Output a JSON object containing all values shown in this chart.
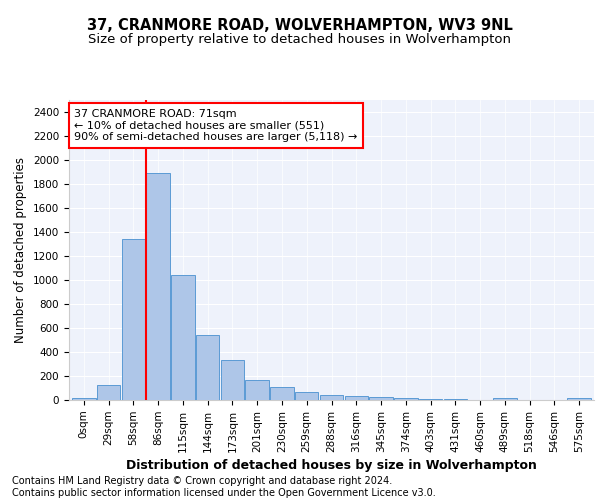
{
  "title": "37, CRANMORE ROAD, WOLVERHAMPTON, WV3 9NL",
  "subtitle": "Size of property relative to detached houses in Wolverhampton",
  "xlabel": "Distribution of detached houses by size in Wolverhampton",
  "ylabel": "Number of detached properties",
  "categories": [
    "0sqm",
    "29sqm",
    "58sqm",
    "86sqm",
    "115sqm",
    "144sqm",
    "173sqm",
    "201sqm",
    "230sqm",
    "259sqm",
    "288sqm",
    "316sqm",
    "345sqm",
    "374sqm",
    "403sqm",
    "431sqm",
    "460sqm",
    "489sqm",
    "518sqm",
    "546sqm",
    "575sqm"
  ],
  "values": [
    15,
    125,
    1345,
    1890,
    1045,
    540,
    335,
    170,
    110,
    65,
    40,
    30,
    25,
    20,
    12,
    8,
    0,
    20,
    0,
    0,
    15
  ],
  "bar_color": "#aec6e8",
  "bar_edge_color": "#5b9bd5",
  "vline_color": "red",
  "annotation_text": "37 CRANMORE ROAD: 71sqm\n← 10% of detached houses are smaller (551)\n90% of semi-detached houses are larger (5,118) →",
  "annotation_box_color": "white",
  "annotation_box_edge_color": "red",
  "ylim": [
    0,
    2500
  ],
  "yticks": [
    0,
    200,
    400,
    600,
    800,
    1000,
    1200,
    1400,
    1600,
    1800,
    2000,
    2200,
    2400
  ],
  "footer_line1": "Contains HM Land Registry data © Crown copyright and database right 2024.",
  "footer_line2": "Contains public sector information licensed under the Open Government Licence v3.0.",
  "background_color": "#eef2fb",
  "grid_color": "#ffffff",
  "title_fontsize": 10.5,
  "subtitle_fontsize": 9.5,
  "axis_label_fontsize": 8.5,
  "tick_fontsize": 7.5,
  "footer_fontsize": 7.0
}
